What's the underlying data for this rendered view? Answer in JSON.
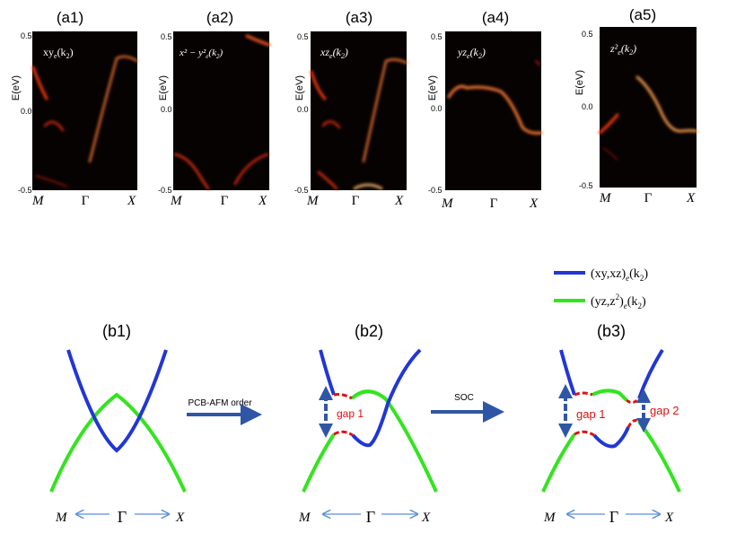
{
  "panels_a": [
    {
      "tag": "(a1)",
      "orb": "xy",
      "sub": "e",
      "k": "(k",
      "ksub": "2",
      "kclose": ")",
      "y_top": "0.5",
      "y_mid": "0.0",
      "y_bot": "-0.5",
      "ylabel": "E(eV)",
      "x_left": "M",
      "x_mid": "Γ",
      "x_right": "X"
    },
    {
      "tag": "(a2)",
      "orb": "x² − y²",
      "sub": "e",
      "k": "(k",
      "ksub": "2",
      "kclose": ")",
      "y_top": "0.5",
      "y_mid": "0.0",
      "y_bot": "-0.5",
      "ylabel": "E(eV)",
      "x_left": "M",
      "x_mid": "Γ",
      "x_right": "X"
    },
    {
      "tag": "(a3)",
      "orb": "xz",
      "sub": "e",
      "k": "(k",
      "ksub": "2",
      "kclose": ")",
      "y_top": "0.5",
      "y_mid": "0.0",
      "y_bot": "-0.5",
      "ylabel": "E(eV)",
      "x_left": "M",
      "x_mid": "Γ",
      "x_right": "X"
    },
    {
      "tag": "(a4)",
      "orb": "yz",
      "sub": "e",
      "k": "(k",
      "ksub": "2",
      "kclose": ")",
      "y_top": "0.5",
      "y_mid": "0.0",
      "y_bot": "-0.5",
      "ylabel": "E(eV)",
      "x_left": "M",
      "x_mid": "Γ",
      "x_right": "X"
    },
    {
      "tag": "(a5)",
      "orb": "z²",
      "sub": "e",
      "k": "(k",
      "ksub": "2",
      "kclose": ")",
      "y_top": "0.5",
      "y_mid": "0.0",
      "y_bot": "-0.5",
      "ylabel": "E(eV)",
      "x_left": "M",
      "x_mid": "Γ",
      "x_right": "X"
    }
  ],
  "legend": [
    {
      "label_main": "(xy,xz)",
      "label_sub": "e",
      "label_k": "(k",
      "label_ksub": "2",
      "label_close": ")",
      "color": "#2236d6"
    },
    {
      "label_main": "(yz,z",
      "label_sup": "2",
      "label_mid": ")",
      "label_sub": "e",
      "label_k": "(k",
      "label_ksub": "2",
      "label_close": ")",
      "color": "#33e41f"
    }
  ],
  "panels_b": [
    {
      "tag": "(b1)",
      "x_left": "M",
      "x_mid": "Γ",
      "x_right": "X"
    },
    {
      "tag": "(b2)",
      "x_left": "M",
      "x_mid": "Γ",
      "x_right": "X",
      "gap1": "gap 1"
    },
    {
      "tag": "(b3)",
      "x_left": "M",
      "x_mid": "Γ",
      "x_right": "X",
      "gap1": "gap 1",
      "gap2": "gap 2"
    }
  ],
  "transitions": [
    {
      "label": "PCB-AFM order"
    },
    {
      "label": "SOC"
    }
  ],
  "colors": {
    "blue_band": "#2236d6",
    "green_band": "#33e41f",
    "gap_red": "#e01010",
    "arrow_blue": "#2f56a6",
    "axis_arrow": "#5a8fd8",
    "plot_bg": "#060202"
  }
}
